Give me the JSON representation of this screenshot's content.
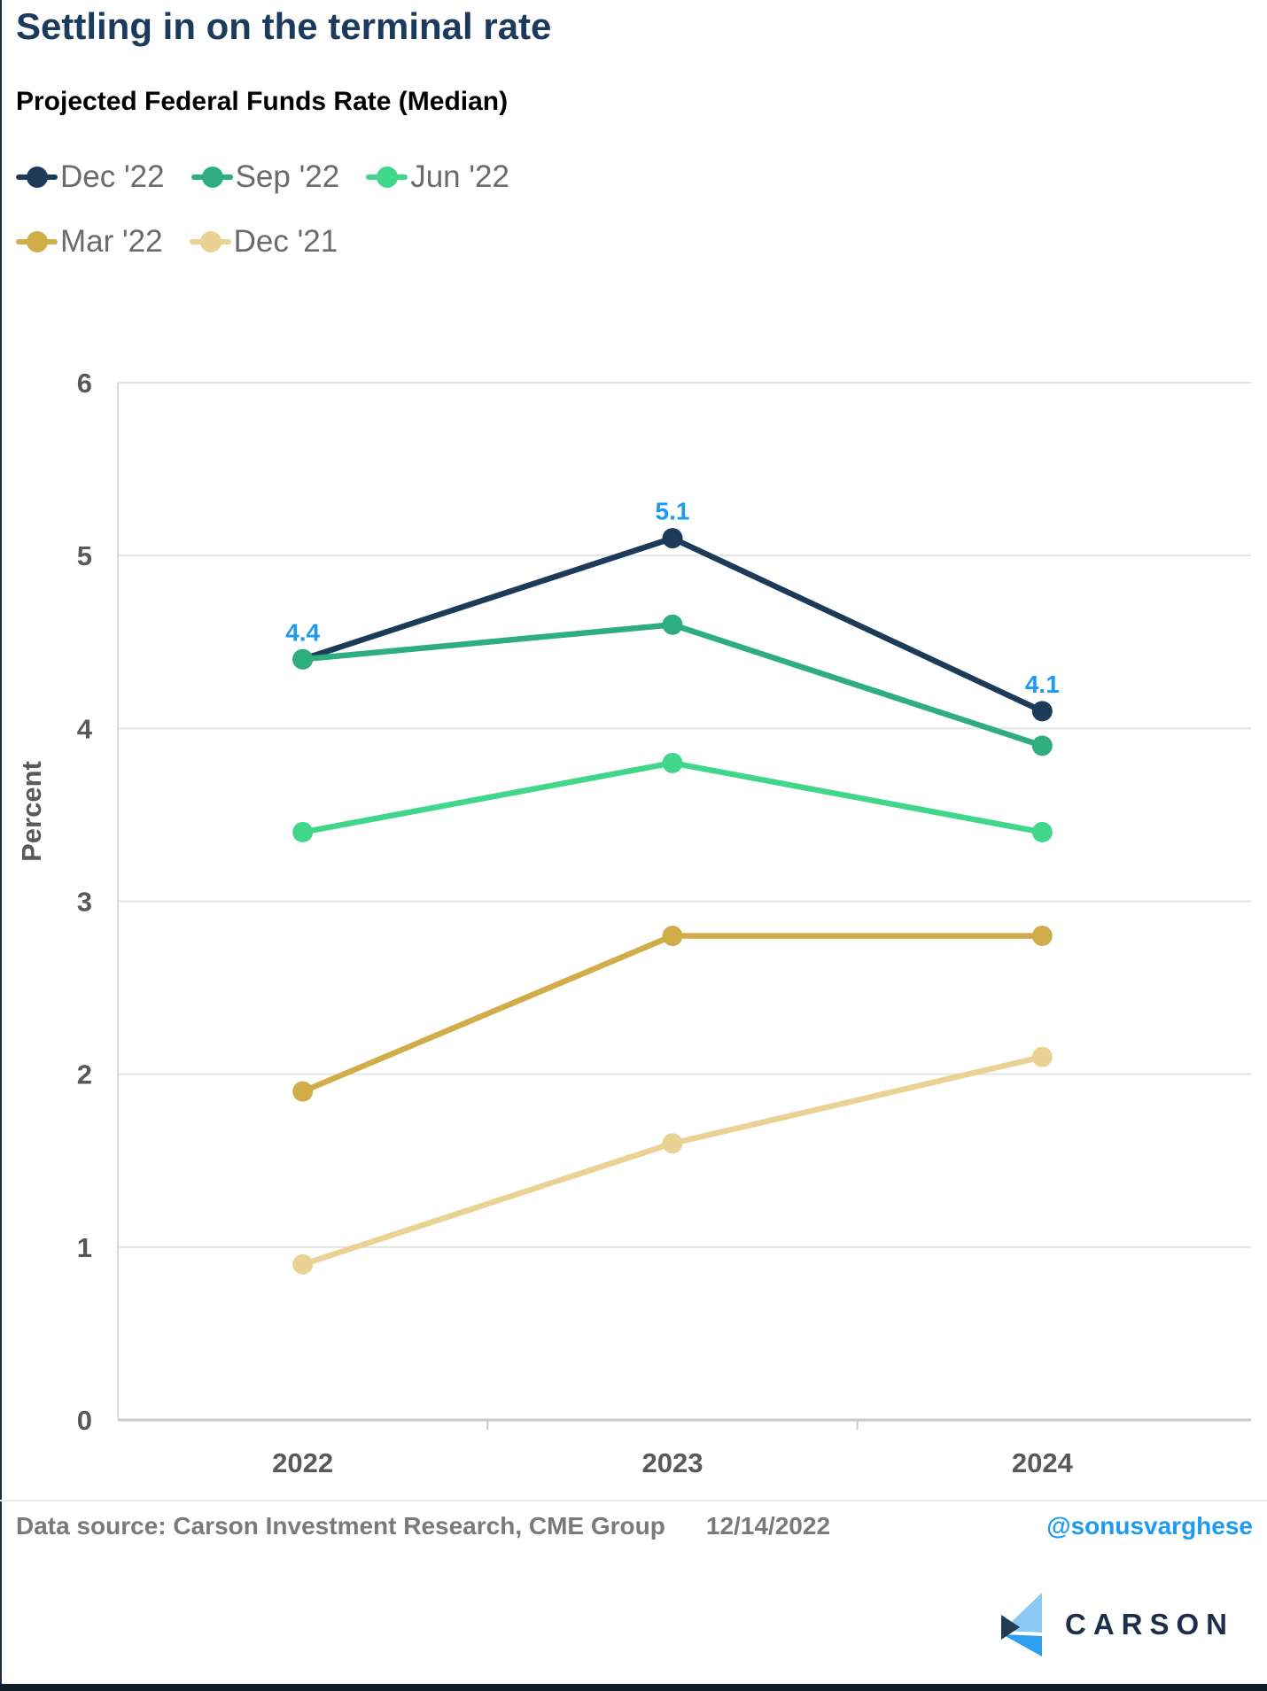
{
  "header": {
    "title": "Settling in on the terminal rate",
    "subtitle": "Projected Federal Funds Rate (Median)"
  },
  "footer": {
    "source": "Data source: Carson Investment Research, CME Group",
    "date": "12/14/2022",
    "handle": "@sonusvarghese",
    "logo_text": "CARSON"
  },
  "colors": {
    "title_navy": "#1b3a5c",
    "point_label_blue": "#1e9af0",
    "axis_text_gray": "#595959",
    "legend_text_gray": "#6b6b6b",
    "gridline": "#e4e4e4",
    "axis_line": "#c9c9c9",
    "logo_navy": "#1c2e4a",
    "logo_light_blue": "#8cc9f2",
    "logo_bright_blue": "#2e9ff0"
  },
  "chart_data": {
    "type": "line",
    "title": "Projected Federal Funds Rate (Median)",
    "categories": [
      "2022",
      "2023",
      "2024"
    ],
    "series": [
      {
        "name": "Dec '22",
        "color": "#1c3b58",
        "values": [
          4.4,
          5.1,
          4.1
        ]
      },
      {
        "name": "Sep '22",
        "color": "#2eae80",
        "values": [
          4.4,
          4.6,
          3.9
        ]
      },
      {
        "name": "Jun '22",
        "color": "#41d78b",
        "values": [
          3.4,
          3.8,
          3.4
        ]
      },
      {
        "name": "Mar '22",
        "color": "#d1ad4a",
        "values": [
          1.9,
          2.8,
          2.8
        ]
      },
      {
        "name": "Dec '21",
        "color": "#e9d294",
        "values": [
          0.9,
          1.6,
          2.1
        ]
      }
    ],
    "point_labels": [
      {
        "series": "Dec '22",
        "category_index": 0,
        "text": "4.4"
      },
      {
        "series": "Dec '22",
        "category_index": 1,
        "text": "5.1"
      },
      {
        "series": "Dec '22",
        "category_index": 2,
        "text": "4.1"
      }
    ],
    "xlabel": "",
    "ylabel": "Percent",
    "ylim": [
      0,
      6
    ],
    "yticks": [
      0,
      1,
      2,
      3,
      4,
      5,
      6
    ],
    "grid": true,
    "legend_position": "top-left",
    "legend_rows": [
      3,
      2
    ]
  }
}
